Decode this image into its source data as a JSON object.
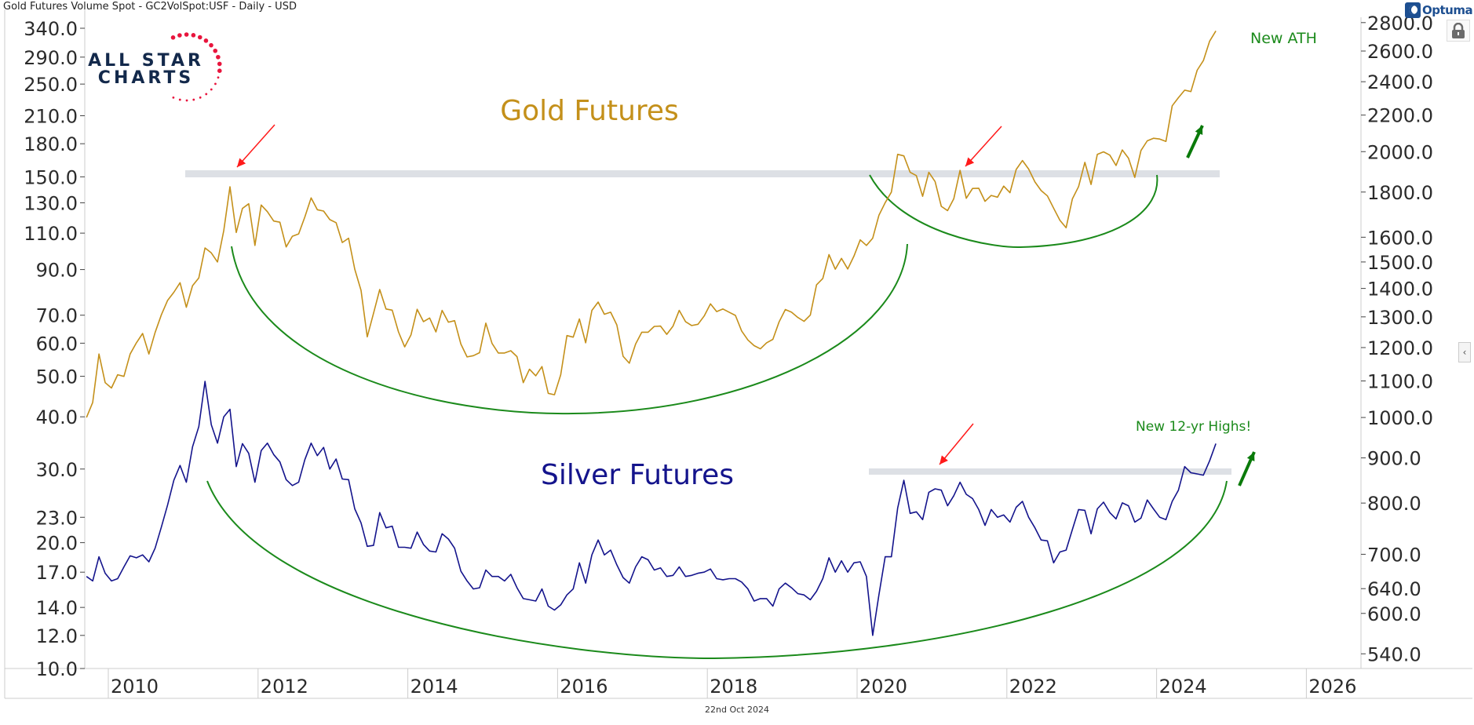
{
  "header": {
    "title": "Gold Futures Volume Spot - GC2VolSpot:USF - Daily - USD"
  },
  "brand": {
    "logo_line1": "ALL STAR",
    "logo_line2": "CHARTS",
    "platform": "Optuma"
  },
  "icons": {
    "lock": "lock-icon",
    "collapse": "chevron-left-icon"
  },
  "footer": {
    "date_label": "22nd Oct 2024"
  },
  "colors": {
    "gold": "#c4901a",
    "silver": "#14148c",
    "annotation_green": "#1b8a1b",
    "arrow_red": "#ff1a1a",
    "resistance_band": "#dde0e5"
  },
  "chart_data": {
    "type": "line",
    "title": "",
    "x_axis": {
      "ticks": [
        "2010",
        "2012",
        "2014",
        "2016",
        "2018",
        "2020",
        "2022",
        "2024",
        "2026"
      ],
      "range": [
        "2009-09",
        "2026-12"
      ]
    },
    "left_axis": {
      "scale": "log",
      "range": [
        10,
        340
      ],
      "ticks": [
        "340.0",
        "290.0",
        "250.0",
        "210.0",
        "180.0",
        "150.0",
        "130.0",
        "110.0",
        "90.0",
        "70.0",
        "60.0",
        "50.0",
        "40.0",
        "30.0",
        "23.0",
        "20.0",
        "17.0",
        "14.0",
        "12.0",
        "10.0"
      ]
    },
    "right_axis": {
      "scale": "log",
      "range": [
        540,
        2800
      ],
      "ticks": [
        "2800.0",
        "2600.0",
        "2400.0",
        "2200.0",
        "2000.0",
        "1800.0",
        "1600.0",
        "1500.0",
        "1400.0",
        "1300.0",
        "1200.0",
        "1100.0",
        "1000.0",
        "900.0",
        "800.0",
        "700.0",
        "640.0",
        "600.0",
        "540.0"
      ]
    },
    "grid": false,
    "start": "2009-09",
    "series": [
      {
        "name": "Gold Futures",
        "axis": "right",
        "values": [
          1000,
          1040,
          1180,
          1095,
          1080,
          1118,
          1113,
          1180,
          1215,
          1245,
          1180,
          1248,
          1307,
          1357,
          1386,
          1421,
          1333,
          1410,
          1439,
          1556,
          1536,
          1500,
          1628,
          1825,
          1620,
          1725,
          1746,
          1566,
          1740,
          1710,
          1669,
          1664,
          1560,
          1604,
          1614,
          1687,
          1773,
          1719,
          1713,
          1675,
          1662,
          1578,
          1596,
          1472,
          1393,
          1234,
          1312,
          1396,
          1327,
          1323,
          1250,
          1202,
          1240,
          1326,
          1284,
          1296,
          1250,
          1322,
          1282,
          1287,
          1211,
          1171,
          1175,
          1184,
          1279,
          1213,
          1183,
          1183,
          1190,
          1172,
          1095,
          1134,
          1115,
          1142,
          1065,
          1061,
          1118,
          1238,
          1233,
          1293,
          1215,
          1322,
          1351,
          1309,
          1316,
          1273,
          1173,
          1152,
          1211,
          1249,
          1249,
          1268,
          1269,
          1242,
          1269,
          1322,
          1284,
          1271,
          1275,
          1303,
          1345,
          1318,
          1327,
          1316,
          1305,
          1253,
          1224,
          1206,
          1196,
          1215,
          1226,
          1283,
          1325,
          1316,
          1298,
          1285,
          1306,
          1413,
          1437,
          1529,
          1472,
          1514,
          1473,
          1523,
          1589,
          1566,
          1596,
          1694,
          1751,
          1800,
          1986,
          1978,
          1895,
          1879,
          1780,
          1895,
          1850,
          1734,
          1715,
          1769,
          1905,
          1771,
          1817,
          1818,
          1757,
          1784,
          1776,
          1828,
          1797,
          1909,
          1954,
          1911,
          1848,
          1807,
          1782,
          1726,
          1672,
          1640,
          1768,
          1826,
          1945,
          1836,
          1986,
          1999,
          1982,
          1929,
          2009,
          1966,
          1870,
          2006,
          2057,
          2071,
          2067,
          2054,
          2254,
          2302,
          2348,
          2339,
          2473,
          2536,
          2668,
          2740
        ]
      },
      {
        "name": "Silver Futures",
        "axis": "left",
        "values": [
          16.6,
          16.2,
          18.5,
          16.9,
          16.2,
          16.4,
          17.5,
          18.6,
          18.4,
          18.7,
          18.0,
          19.4,
          21.8,
          24.6,
          28.2,
          30.6,
          27.9,
          33.9,
          37.9,
          48.6,
          38.3,
          34.6,
          40.0,
          41.7,
          30.4,
          34.5,
          32.7,
          27.9,
          33.2,
          34.6,
          32.5,
          31.2,
          28.3,
          27.4,
          27.9,
          31.6,
          34.6,
          32.3,
          33.8,
          30.0,
          31.7,
          28.4,
          28.3,
          24.1,
          22.3,
          19.6,
          19.7,
          23.6,
          21.7,
          21.9,
          19.5,
          19.5,
          19.4,
          21.2,
          19.8,
          19.1,
          19.0,
          21.0,
          20.4,
          19.4,
          17.1,
          16.2,
          15.5,
          15.6,
          17.2,
          16.6,
          16.6,
          16.2,
          16.8,
          15.6,
          14.7,
          14.6,
          14.5,
          15.5,
          14.1,
          13.8,
          14.2,
          15.0,
          15.5,
          17.9,
          16.0,
          18.7,
          20.3,
          18.7,
          19.2,
          17.7,
          16.5,
          16.0,
          17.5,
          18.5,
          18.2,
          17.2,
          17.4,
          16.6,
          16.7,
          17.5,
          16.6,
          16.7,
          16.9,
          17.0,
          17.3,
          16.4,
          16.3,
          16.4,
          16.4,
          16.1,
          15.5,
          14.5,
          14.7,
          14.7,
          14.1,
          15.5,
          16.0,
          15.6,
          15.1,
          15.0,
          14.6,
          15.3,
          16.4,
          18.4,
          17.0,
          18.1,
          17.0,
          17.9,
          18.0,
          16.6,
          12.0,
          15.0,
          18.5,
          18.5,
          24.2,
          28.2,
          23.5,
          23.7,
          22.7,
          26.4,
          26.9,
          26.7,
          24.5,
          25.9,
          27.9,
          26.1,
          25.5,
          24.0,
          22.0,
          24.0,
          23.0,
          23.3,
          22.4,
          24.3,
          25.1,
          23.0,
          21.7,
          20.3,
          20.2,
          17.9,
          19.0,
          19.2,
          21.5,
          24.0,
          23.9,
          21.0,
          24.1,
          25.0,
          23.6,
          22.8,
          24.9,
          24.5,
          22.4,
          22.9,
          25.3,
          24.1,
          23.0,
          22.7,
          25.1,
          26.7,
          30.4,
          29.4,
          29.2,
          29.0,
          31.4,
          34.5
        ]
      }
    ],
    "annotations": {
      "gold_label": "Gold Futures",
      "silver_label": "Silver Futures",
      "gold_note": "New ATH",
      "silver_note": "New 12-yr Highs!",
      "gold_resistance": 1900,
      "silver_resistance": 29
    }
  }
}
